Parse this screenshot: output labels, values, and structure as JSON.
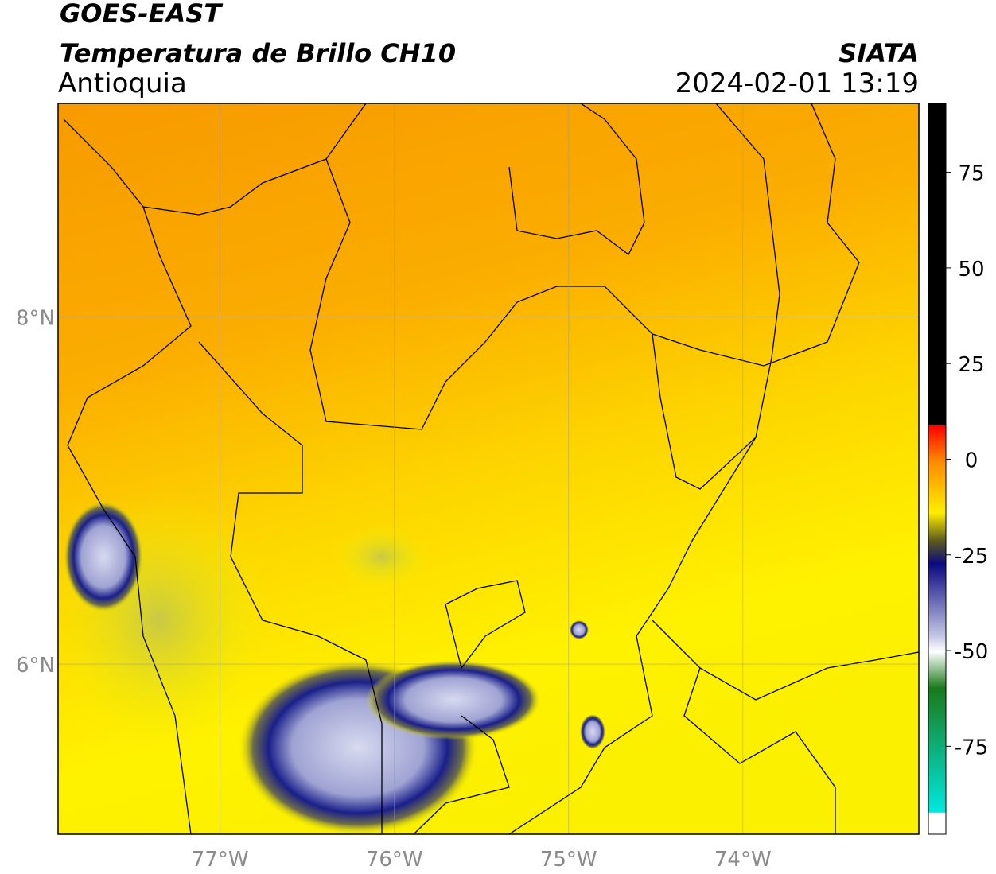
{
  "header": {
    "title": "GOES-EAST",
    "subtitle": "Temperatura de Brillo CH10",
    "region": "Antioquia",
    "source": "SIATA",
    "datetime": "2024-02-01 13:19"
  },
  "map": {
    "lon_range": [
      -77.93,
      -72.99
    ],
    "lat_range": [
      5.02,
      9.23
    ],
    "lon_ticks": [
      {
        "value": -77,
        "label": "77°W"
      },
      {
        "value": -76,
        "label": "76°W"
      },
      {
        "value": -75,
        "label": "75°W"
      },
      {
        "value": -74,
        "label": "74°W"
      }
    ],
    "lat_ticks": [
      {
        "value": 8,
        "label": "8°N"
      },
      {
        "value": 6,
        "label": "6°N"
      }
    ],
    "grid": true
  },
  "colorbar": {
    "range": [
      -98,
      93
    ],
    "ticks": [
      75,
      50,
      25,
      0,
      -25,
      -50,
      -75
    ]
  }
}
